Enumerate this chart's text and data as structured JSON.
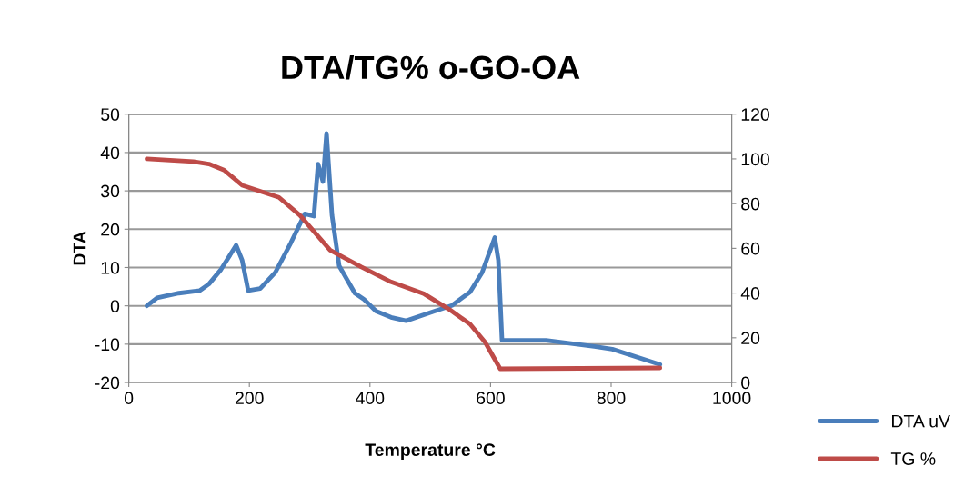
{
  "chart_data": {
    "type": "line",
    "title": "DTA/TG% o-GO-OA",
    "xlabel": "Temperature °C",
    "ylabel": "DTA",
    "xlim": [
      0,
      1000
    ],
    "xticks": [
      0,
      200,
      400,
      600,
      800,
      1000
    ],
    "ylim": [
      -20,
      50
    ],
    "yticks": [
      -20,
      -10,
      0,
      10,
      20,
      30,
      40,
      50
    ],
    "y2lim": [
      0,
      120
    ],
    "y2ticks": [
      0,
      20,
      40,
      60,
      80,
      100,
      120
    ],
    "grid": "y",
    "legend": "right",
    "marker": "none",
    "line_style": "solid",
    "series": [
      {
        "name": "DTA uV",
        "color": "#4a7ebb",
        "x": [
          30,
          47,
          83,
          118,
          133,
          153,
          178,
          188,
          198,
          218,
          243,
          269,
          292,
          307,
          314,
          322,
          328,
          337,
          349,
          375,
          390,
          410,
          435,
          460,
          505,
          536,
          566,
          586,
          607,
          613,
          619,
          692,
          772,
          802,
          881
        ],
        "values": [
          0,
          2.1,
          3.3,
          4,
          5.7,
          9.5,
          15.8,
          11.9,
          4,
          4.5,
          8.7,
          16.5,
          24,
          23.4,
          37,
          32.4,
          45,
          23.7,
          10.4,
          3.3,
          1.7,
          -1.4,
          -3,
          -3.9,
          -1.5,
          0.1,
          3.6,
          8.7,
          17.8,
          11.9,
          -9,
          -9,
          -10.6,
          -11.3,
          -15.3
        ]
      },
      {
        "name": "TG %",
        "color": "#be4b48",
        "axis": "y2",
        "x": [
          30,
          107,
          133,
          158,
          188,
          249,
          284,
          334,
          385,
          435,
          490,
          531,
          566,
          591,
          616,
          881
        ],
        "values": [
          100,
          98.8,
          97.7,
          95,
          88.2,
          82.8,
          74.7,
          59.2,
          51.8,
          45,
          39.6,
          32.8,
          26.1,
          18,
          6.1,
          6.5
        ]
      }
    ]
  }
}
